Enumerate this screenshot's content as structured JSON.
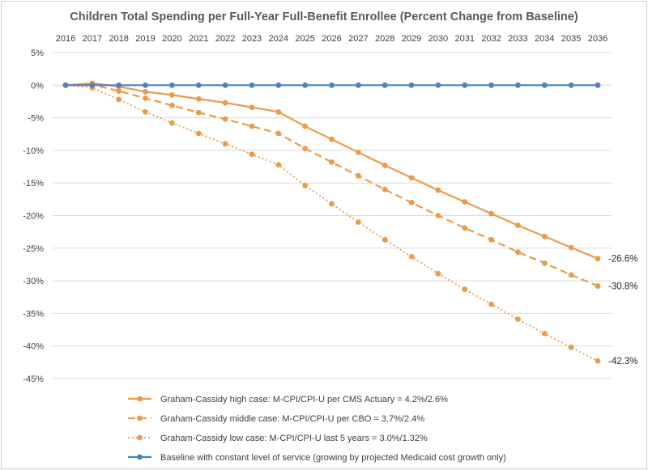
{
  "chart_data": {
    "type": "line",
    "title": "Children Total Spending per Full-Year Full-Benefit Enrollee (Percent Change from Baseline)",
    "xlabel": "",
    "ylabel": "",
    "x": [
      2016,
      2017,
      2018,
      2019,
      2020,
      2021,
      2022,
      2023,
      2024,
      2025,
      2026,
      2027,
      2028,
      2029,
      2030,
      2031,
      2032,
      2033,
      2034,
      2035,
      2036
    ],
    "ylim": [
      -45,
      5
    ],
    "yticks": [
      5,
      0,
      -5,
      -10,
      -15,
      -20,
      -25,
      -30,
      -35,
      -40,
      -45
    ],
    "ytick_labels": [
      "5%",
      "0%",
      "-5%",
      "-10%",
      "-15%",
      "-20%",
      "-25%",
      "-30%",
      "-35%",
      "-40%",
      "-45%"
    ],
    "grid": true,
    "legend_position": "bottom",
    "series": [
      {
        "name": "Graham-Cassidy high case: M-CPI/CPI-U per CMS Actuary = 4.2%/2.6%",
        "color": "#ED9B4A",
        "style": "solid",
        "values": [
          0,
          0.3,
          -0.2,
          -1.0,
          -1.5,
          -2.1,
          -2.7,
          -3.4,
          -4.1,
          -6.3,
          -8.3,
          -10.3,
          -12.3,
          -14.2,
          -16.1,
          -17.9,
          -19.7,
          -21.5,
          -23.2,
          -24.9,
          -26.6
        ],
        "end_label": "-26.6%"
      },
      {
        "name": "Graham-Cassidy middle case: M-CPI/CPI-U per CBO = 3.7%/2.4%",
        "color": "#ED9B4A",
        "style": "dashed",
        "values": [
          0,
          0.1,
          -0.9,
          -2.0,
          -3.1,
          -4.2,
          -5.2,
          -6.3,
          -7.4,
          -9.7,
          -11.8,
          -13.9,
          -16.0,
          -18.0,
          -20.0,
          -21.9,
          -23.7,
          -25.6,
          -27.3,
          -29.1,
          -30.8
        ],
        "end_label": "-30.8%"
      },
      {
        "name": "Graham-Cassidy low case: M-CPI/CPI-U last 5 years = 3.0%/1.32%",
        "color": "#ED9B4A",
        "style": "dotted",
        "values": [
          0,
          -0.4,
          -2.2,
          -4.1,
          -5.8,
          -7.4,
          -9.0,
          -10.6,
          -12.2,
          -15.4,
          -18.2,
          -21.0,
          -23.7,
          -26.3,
          -28.9,
          -31.3,
          -33.6,
          -35.9,
          -38.1,
          -40.2,
          -42.3
        ],
        "end_label": "-42.3%"
      },
      {
        "name": "Baseline with constant level of service (growing by projected Medicaid cost growth only)",
        "color": "#4F81BD",
        "style": "solid",
        "values": [
          0,
          0,
          0,
          0,
          0,
          0,
          0,
          0,
          0,
          0,
          0,
          0,
          0,
          0,
          0,
          0,
          0,
          0,
          0,
          0,
          0
        ],
        "end_label": ""
      }
    ]
  }
}
